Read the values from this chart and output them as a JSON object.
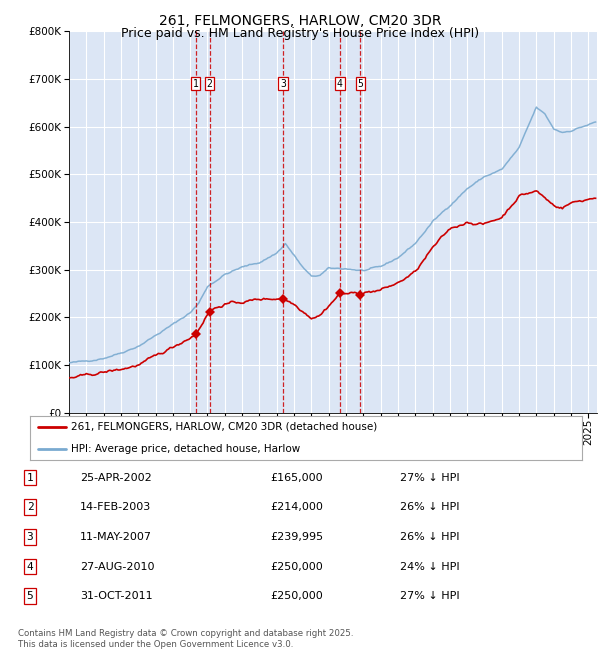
{
  "title": "261, FELMONGERS, HARLOW, CM20 3DR",
  "subtitle": "Price paid vs. HM Land Registry's House Price Index (HPI)",
  "footer": "Contains HM Land Registry data © Crown copyright and database right 2025.\nThis data is licensed under the Open Government Licence v3.0.",
  "legend_entries": [
    "261, FELMONGERS, HARLOW, CM20 3DR (detached house)",
    "HPI: Average price, detached house, Harlow"
  ],
  "transactions": [
    {
      "num": 1,
      "date": "25-APR-2002",
      "price": "£165,000",
      "hpi_pct": "27% ↓ HPI",
      "date_decimal": 2002.32
    },
    {
      "num": 2,
      "date": "14-FEB-2003",
      "price": "£214,000",
      "hpi_pct": "26% ↓ HPI",
      "date_decimal": 2003.12
    },
    {
      "num": 3,
      "date": "11-MAY-2007",
      "price": "£239,995",
      "hpi_pct": "26% ↓ HPI",
      "date_decimal": 2007.36
    },
    {
      "num": 4,
      "date": "27-AUG-2010",
      "price": "£250,000",
      "hpi_pct": "24% ↓ HPI",
      "date_decimal": 2010.65
    },
    {
      "num": 5,
      "date": "31-OCT-2011",
      "price": "£250,000",
      "hpi_pct": "27% ↓ HPI",
      "date_decimal": 2011.83
    }
  ],
  "hpi_line_color": "#7aaad0",
  "price_line_color": "#cc0000",
  "marker_color": "#cc0000",
  "vline_color": "#cc0000",
  "plot_bg_color": "#dce6f5",
  "grid_color": "#ffffff",
  "ylim": [
    0,
    800000
  ],
  "yticks": [
    0,
    100000,
    200000,
    300000,
    400000,
    500000,
    600000,
    700000,
    800000
  ],
  "title_fontsize": 10,
  "subtitle_fontsize": 9,
  "tick_fontsize": 7.5,
  "hpi_marker_value": [
    165000,
    214000,
    239995,
    250000,
    250000
  ]
}
